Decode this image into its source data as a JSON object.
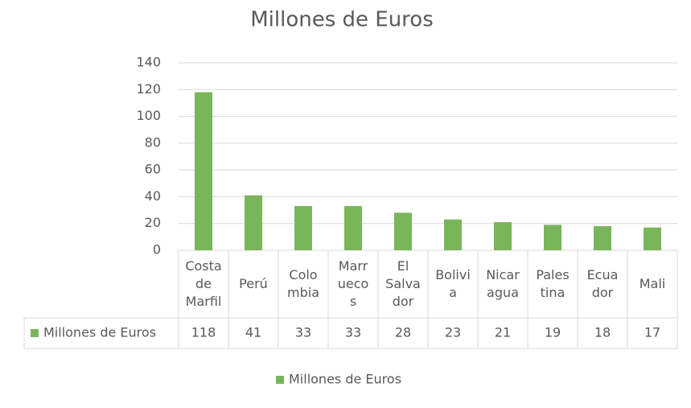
{
  "chart_data": {
    "type": "bar",
    "title": "Millones de Euros",
    "categories": [
      "Costa de Marfil",
      "Perú",
      "Colombia",
      "Marruecos",
      "El Salvador",
      "Bolivia",
      "Nicaragua",
      "Palestina",
      "Ecuador",
      "Mali"
    ],
    "series": [
      {
        "name": "Millones de Euros",
        "color": "#7ab55c",
        "values": [
          118,
          41,
          33,
          33,
          28,
          23,
          21,
          19,
          18,
          17
        ]
      }
    ],
    "ylim": [
      0,
      140
    ],
    "yticks": [
      0,
      20,
      40,
      60,
      80,
      100,
      120,
      140
    ],
    "grid": true,
    "legend": "bottom",
    "data_table": true
  }
}
